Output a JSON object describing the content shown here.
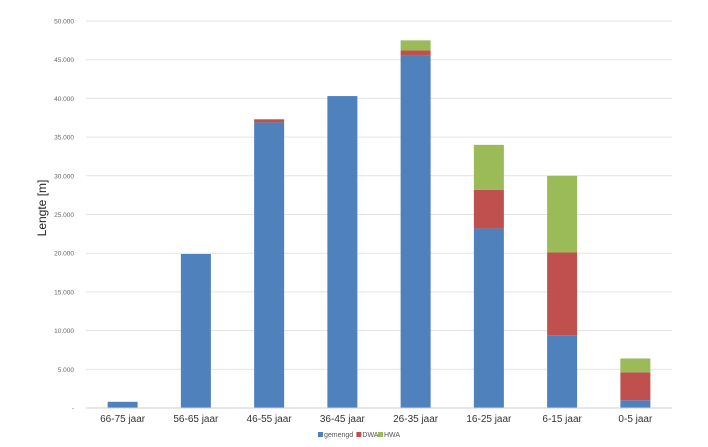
{
  "chart_data": {
    "type": "bar",
    "stacked": true,
    "categories": [
      "66-75 jaar",
      "56-65 jaar",
      "46-55 jaar",
      "36-45 jaar",
      "26-35 jaar",
      "16-25 jaar",
      "6-15 jaar",
      "0-5 jaar"
    ],
    "series": [
      {
        "name": "gemengd",
        "color": "#4f81bd",
        "values": [
          800,
          19900,
          36900,
          40300,
          45600,
          23200,
          9400,
          1000
        ]
      },
      {
        "name": "DWA",
        "color": "#c0504d",
        "values": [
          0,
          0,
          400,
          0,
          600,
          5000,
          10700,
          3600
        ]
      },
      {
        "name": "HWA",
        "color": "#9bbb59",
        "values": [
          0,
          0,
          0,
          0,
          1300,
          5800,
          9900,
          1800
        ]
      }
    ],
    "ylabel": "Lengte [m]",
    "xlabel": "",
    "title": "",
    "ylim": [
      0,
      50000
    ],
    "yticks": [
      0,
      5000,
      10000,
      15000,
      20000,
      25000,
      30000,
      35000,
      40000,
      45000,
      50000
    ],
    "ytick_labels": [
      "-",
      "5.000",
      "10.000",
      "15.000",
      "20.000",
      "25.000",
      "30.000",
      "35.000",
      "40.000",
      "45.000",
      "50.000"
    ],
    "grid": true,
    "legend_position": "bottom"
  }
}
